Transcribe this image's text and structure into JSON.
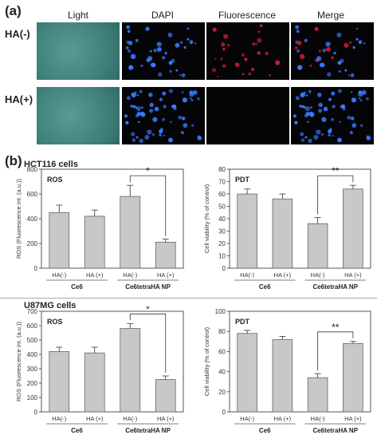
{
  "panel_a": {
    "label": "(a)",
    "columns": [
      "Light",
      "DAPI",
      "Fluorescence",
      "Merge"
    ],
    "rows": [
      "HA(-)",
      "HA(+)"
    ]
  },
  "panel_b": {
    "label": "(b)",
    "sections": [
      "HCT116 cells",
      "U87MG cells"
    ]
  },
  "colors": {
    "bar": "#c8c8c8",
    "dapi": "#3a7bff",
    "fluor": "#c81e32",
    "light": "#3d7e78"
  },
  "chart_data": [
    {
      "type": "bar",
      "section": "HCT116 cells",
      "title": "ROS",
      "ylabel": "ROS (Fluorescence int. (a.u.))",
      "ylim": [
        0,
        800
      ],
      "yticks": [
        0,
        200,
        400,
        600,
        800
      ],
      "categories": [
        "HA(-)",
        "HA (+)",
        "HA(-)",
        "HA (+)"
      ],
      "groups": [
        "Ce6",
        "Ce6tetraHA NP"
      ],
      "values": [
        450,
        420,
        580,
        210
      ],
      "errors": [
        60,
        50,
        90,
        25
      ],
      "significance": {
        "between": [
          2,
          3
        ],
        "label": "*"
      }
    },
    {
      "type": "bar",
      "section": "HCT116 cells",
      "title": "PDT",
      "ylabel": "Cell viability (% of control)",
      "ylim": [
        0,
        80
      ],
      "yticks": [
        0,
        10,
        20,
        30,
        40,
        50,
        60,
        70,
        80
      ],
      "categories": [
        "HA(-)",
        "HA (+)",
        "HA(-)",
        "HA (+)"
      ],
      "groups": [
        "Ce6",
        "Ce6tetraHA NP"
      ],
      "values": [
        60,
        56,
        36,
        64
      ],
      "errors": [
        4,
        4,
        5,
        3
      ],
      "significance": {
        "between": [
          2,
          3
        ],
        "label": "**"
      }
    },
    {
      "type": "bar",
      "section": "U87MG cells",
      "title": "ROS",
      "ylabel": "ROS (Fluorescence int. (a.u.))",
      "ylim": [
        0,
        700
      ],
      "yticks": [
        0,
        100,
        200,
        300,
        400,
        500,
        600,
        700
      ],
      "categories": [
        "HA(-)",
        "HA (+)",
        "HA(-)",
        "HA (+)"
      ],
      "groups": [
        "Ce6",
        "Ce6tetraHA NP"
      ],
      "values": [
        420,
        410,
        580,
        225
      ],
      "errors": [
        30,
        40,
        35,
        25
      ],
      "significance": {
        "between": [
          2,
          3
        ],
        "label": "*"
      }
    },
    {
      "type": "bar",
      "section": "U87MG cells",
      "title": "PDT",
      "ylabel": "Cell viability (% of control)",
      "ylim": [
        0,
        100
      ],
      "yticks": [
        0,
        20,
        40,
        60,
        80,
        100
      ],
      "categories": [
        "HA(-)",
        "HA (+)",
        "HA(-)",
        "HA (+)"
      ],
      "groups": [
        "Ce6",
        "Ce6tetraHA NP"
      ],
      "values": [
        78,
        72,
        34,
        68
      ],
      "errors": [
        3,
        3,
        4,
        2
      ],
      "significance": {
        "between": [
          2,
          3
        ],
        "label": "**"
      }
    }
  ]
}
